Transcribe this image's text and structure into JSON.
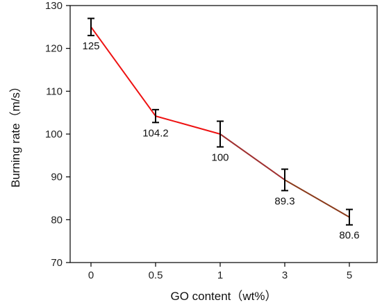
{
  "chart_data": {
    "type": "line",
    "categories": [
      "0",
      "0.5",
      "1",
      "3",
      "5"
    ],
    "values": [
      125,
      104.2,
      100,
      89.3,
      80.6
    ],
    "errors": [
      2,
      1.5,
      3,
      2.5,
      1.8
    ],
    "data_labels": [
      "125",
      "104.2",
      "100",
      "89.3",
      "80.6"
    ],
    "xlabel": "GO content（wt%）",
    "ylabel": "Burning rate（m/s）",
    "ylim": [
      70,
      130
    ],
    "yticks": [
      70,
      80,
      90,
      100,
      110,
      120,
      130
    ],
    "grid": false,
    "line_colors": [
      "#ee1111",
      "#ee1111",
      "#a03030",
      "#8a3a1a"
    ]
  }
}
